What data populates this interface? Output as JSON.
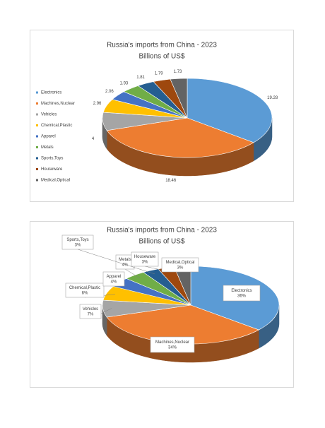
{
  "chart_data": [
    {
      "type": "pie",
      "title": "Russia's imports from China - 2023",
      "subtitle": "Billions of US$",
      "categories": [
        "Electronics",
        "Machines,Nuclear",
        "Vehicles",
        "Chemical,Plastic",
        "Apparel",
        "Metals",
        "Sports,Toys",
        "Houseware",
        "Medical,Optical"
      ],
      "values": [
        19.28,
        18.46,
        4,
        2.96,
        2.06,
        1.93,
        1.81,
        1.79,
        1.73
      ],
      "colors": [
        "#5B9BD5",
        "#ED7D31",
        "#A5A5A5",
        "#FFC000",
        "#4472C4",
        "#70AD47",
        "#255E91",
        "#9E480E",
        "#636363"
      ],
      "legend": "left"
    },
    {
      "type": "pie",
      "title": "Russia's imports from China - 2023",
      "subtitle": "Billions of US$",
      "categories": [
        "Electronics",
        "Machines,Nuclear",
        "Vehicles",
        "Chemical,Plastic",
        "Apparel",
        "Metals",
        "Sports,Toys",
        "Houseware",
        "Medical,Optical"
      ],
      "values": [
        36,
        34,
        7,
        6,
        4,
        4,
        3,
        3,
        3
      ],
      "value_labels": [
        "36%",
        "34%",
        "7%",
        "6%",
        "4%",
        "4%",
        "3%",
        "3%",
        "3%"
      ],
      "colors": [
        "#5B9BD5",
        "#ED7D31",
        "#A5A5A5",
        "#FFC000",
        "#4472C4",
        "#70AD47",
        "#255E91",
        "#9E480E",
        "#636363"
      ]
    }
  ]
}
